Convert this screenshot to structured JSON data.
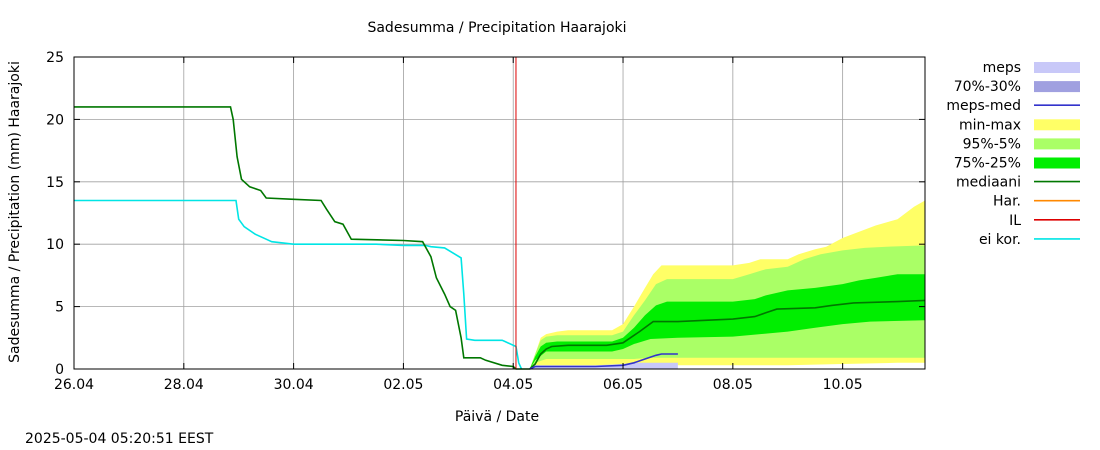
{
  "chart_data": {
    "type": "area",
    "title": "Sadesumma / Precipitation  Haarajoki",
    "xlabel": "Päivä / Date",
    "ylabel": "Sadesumma / Precipitation (mm)  Haarajoki",
    "timestamp": "2025-05-04  05:20:51  EEST",
    "x_unit": "days since 26.04",
    "xlim": [
      0,
      15.5
    ],
    "ylim": [
      0,
      25
    ],
    "yticks": [
      0,
      5,
      10,
      15,
      20,
      25
    ],
    "xticks": [
      {
        "x": 0,
        "label": "26.04"
      },
      {
        "x": 2,
        "label": "28.04"
      },
      {
        "x": 4,
        "label": "30.04"
      },
      {
        "x": 6,
        "label": "02.05"
      },
      {
        "x": 8,
        "label": "04.05"
      },
      {
        "x": 10,
        "label": "06.05"
      },
      {
        "x": 12,
        "label": "08.05"
      },
      {
        "x": 14,
        "label": "10.05"
      }
    ],
    "grid": true,
    "legend_position": "right",
    "colors": {
      "meps": "#c8c8f8",
      "meps_70_30": "#a0a0e0",
      "meps_med": "#3333cc",
      "min_max": "#ffff66",
      "p95_5": "#aaff66",
      "p75_25": "#00ee00",
      "mediaani": "#007700",
      "har": "#ff8800",
      "il": "#dd0000",
      "ei_kor": "#00e5e5"
    },
    "legend": [
      {
        "label": "meps",
        "key": "meps",
        "kind": "box"
      },
      {
        "label": "70%-30%",
        "key": "meps_70_30",
        "kind": "box"
      },
      {
        "label": "meps-med",
        "key": "meps_med",
        "kind": "line"
      },
      {
        "label": "min-max",
        "key": "min_max",
        "kind": "box"
      },
      {
        "label": "95%-5%",
        "key": "p95_5",
        "kind": "box"
      },
      {
        "label": "75%-25%",
        "key": "p75_25",
        "kind": "box"
      },
      {
        "label": "mediaani",
        "key": "mediaani",
        "kind": "line"
      },
      {
        "label": "Har.",
        "key": "har",
        "kind": "line"
      },
      {
        "label": "IL",
        "key": "il",
        "kind": "line"
      },
      {
        "label": "ei kor.",
        "key": "ei_kor",
        "kind": "line"
      }
    ],
    "current_time_x": 8.05,
    "series": [
      {
        "name": "mediaani",
        "kind": "line",
        "points": [
          [
            0,
            21
          ],
          [
            2.85,
            21
          ],
          [
            2.9,
            20
          ],
          [
            2.97,
            17
          ],
          [
            3.05,
            15.2
          ],
          [
            3.2,
            14.6
          ],
          [
            3.4,
            14.3
          ],
          [
            3.5,
            13.7
          ],
          [
            4.0,
            13.6
          ],
          [
            4.5,
            13.5
          ],
          [
            4.6,
            12.8
          ],
          [
            4.75,
            11.8
          ],
          [
            4.9,
            11.6
          ],
          [
            5.05,
            10.4
          ],
          [
            6.0,
            10.3
          ],
          [
            6.35,
            10.2
          ],
          [
            6.5,
            9.0
          ],
          [
            6.6,
            7.3
          ],
          [
            6.75,
            6.0
          ],
          [
            6.85,
            5.0
          ],
          [
            6.95,
            4.7
          ],
          [
            7.05,
            2.5
          ],
          [
            7.1,
            0.9
          ],
          [
            7.4,
            0.9
          ],
          [
            7.5,
            0.7
          ],
          [
            7.8,
            0.3
          ],
          [
            8.0,
            0.2
          ],
          [
            8.05,
            0.0
          ],
          [
            8.3,
            0.0
          ],
          [
            8.4,
            0.4
          ],
          [
            8.5,
            1.2
          ],
          [
            8.6,
            1.6
          ],
          [
            8.7,
            1.8
          ],
          [
            9.0,
            1.9
          ],
          [
            9.7,
            1.9
          ],
          [
            10.0,
            2.1
          ],
          [
            10.3,
            3.0
          ],
          [
            10.55,
            3.8
          ],
          [
            11.0,
            3.8
          ],
          [
            11.5,
            3.9
          ],
          [
            12.0,
            4.0
          ],
          [
            12.4,
            4.2
          ],
          [
            12.6,
            4.5
          ],
          [
            12.8,
            4.8
          ],
          [
            13.5,
            4.9
          ],
          [
            13.8,
            5.1
          ],
          [
            14.2,
            5.3
          ],
          [
            15.0,
            5.4
          ],
          [
            15.5,
            5.5
          ]
        ]
      },
      {
        "name": "ei kor.",
        "kind": "line",
        "points": [
          [
            0,
            13.5
          ],
          [
            2.95,
            13.5
          ],
          [
            3.0,
            12.0
          ],
          [
            3.1,
            11.4
          ],
          [
            3.3,
            10.8
          ],
          [
            3.5,
            10.4
          ],
          [
            3.6,
            10.2
          ],
          [
            4.0,
            10.0
          ],
          [
            5.0,
            10.0
          ],
          [
            5.5,
            10.0
          ],
          [
            6.0,
            9.9
          ],
          [
            6.4,
            9.9
          ],
          [
            6.5,
            9.8
          ],
          [
            6.75,
            9.7
          ],
          [
            7.05,
            8.9
          ],
          [
            7.1,
            6.0
          ],
          [
            7.15,
            2.4
          ],
          [
            7.3,
            2.3
          ],
          [
            7.8,
            2.3
          ],
          [
            7.85,
            2.2
          ],
          [
            8.05,
            1.8
          ],
          [
            8.1,
            0.5
          ],
          [
            8.15,
            0.0
          ]
        ]
      },
      {
        "name": "meps-med",
        "kind": "line",
        "points": [
          [
            8.3,
            0.0
          ],
          [
            8.4,
            0.2
          ],
          [
            9.5,
            0.2
          ],
          [
            10.0,
            0.3
          ],
          [
            10.2,
            0.5
          ],
          [
            10.4,
            0.8
          ],
          [
            10.6,
            1.1
          ],
          [
            10.7,
            1.2
          ],
          [
            11.0,
            1.2
          ]
        ]
      },
      {
        "name": "meps",
        "kind": "band",
        "upper": [
          [
            8.3,
            0.0
          ],
          [
            8.4,
            0.3
          ],
          [
            9.5,
            0.3
          ],
          [
            10.0,
            0.4
          ],
          [
            10.2,
            0.5
          ],
          [
            10.5,
            0.5
          ],
          [
            11.0,
            0.5
          ]
        ],
        "lower": [
          [
            8.3,
            0.0
          ],
          [
            11.0,
            0.0
          ]
        ]
      },
      {
        "name": "min-max",
        "kind": "band",
        "upper": [
          [
            8.3,
            0.0
          ],
          [
            8.4,
            1.2
          ],
          [
            8.5,
            2.5
          ],
          [
            8.6,
            2.8
          ],
          [
            8.8,
            3.0
          ],
          [
            9.0,
            3.1
          ],
          [
            9.8,
            3.1
          ],
          [
            10.0,
            3.6
          ],
          [
            10.2,
            5.0
          ],
          [
            10.4,
            6.5
          ],
          [
            10.55,
            7.6
          ],
          [
            10.7,
            8.3
          ],
          [
            11.5,
            8.3
          ],
          [
            12.0,
            8.3
          ],
          [
            12.3,
            8.5
          ],
          [
            12.5,
            8.8
          ],
          [
            13.0,
            8.8
          ],
          [
            13.2,
            9.2
          ],
          [
            13.5,
            9.6
          ],
          [
            13.7,
            9.8
          ],
          [
            14.0,
            10.5
          ],
          [
            14.3,
            11.0
          ],
          [
            14.6,
            11.5
          ],
          [
            15.0,
            12.0
          ],
          [
            15.3,
            13.0
          ],
          [
            15.5,
            13.5
          ]
        ],
        "lower": [
          [
            8.3,
            0.0
          ],
          [
            8.5,
            0.1
          ],
          [
            9.5,
            0.1
          ],
          [
            10.0,
            0.2
          ],
          [
            10.5,
            0.3
          ],
          [
            11.0,
            0.3
          ],
          [
            13.0,
            0.3
          ],
          [
            14.0,
            0.4
          ],
          [
            15.0,
            0.5
          ],
          [
            15.5,
            0.5
          ]
        ]
      },
      {
        "name": "95%-5%",
        "kind": "band",
        "upper": [
          [
            8.3,
            0.0
          ],
          [
            8.4,
            1.2
          ],
          [
            8.5,
            2.3
          ],
          [
            8.6,
            2.6
          ],
          [
            8.8,
            2.7
          ],
          [
            9.8,
            2.7
          ],
          [
            10.0,
            3.0
          ],
          [
            10.2,
            4.3
          ],
          [
            10.4,
            5.5
          ],
          [
            10.6,
            6.8
          ],
          [
            10.8,
            7.2
          ],
          [
            12.0,
            7.2
          ],
          [
            12.3,
            7.6
          ],
          [
            12.6,
            8.0
          ],
          [
            13.0,
            8.2
          ],
          [
            13.3,
            8.8
          ],
          [
            13.6,
            9.2
          ],
          [
            14.0,
            9.5
          ],
          [
            14.4,
            9.7
          ],
          [
            14.8,
            9.8
          ],
          [
            15.5,
            9.9
          ]
        ],
        "lower": [
          [
            8.3,
            0.0
          ],
          [
            8.4,
            0.5
          ],
          [
            8.6,
            0.8
          ],
          [
            9.8,
            0.8
          ],
          [
            10.2,
            0.8
          ],
          [
            10.5,
            0.9
          ],
          [
            12.0,
            0.9
          ],
          [
            14.0,
            0.9
          ],
          [
            15.5,
            0.9
          ]
        ]
      },
      {
        "name": "75%-25%",
        "kind": "band",
        "upper": [
          [
            8.3,
            0.0
          ],
          [
            8.4,
            1.0
          ],
          [
            8.5,
            1.8
          ],
          [
            8.6,
            2.1
          ],
          [
            8.8,
            2.2
          ],
          [
            9.8,
            2.2
          ],
          [
            10.0,
            2.5
          ],
          [
            10.2,
            3.3
          ],
          [
            10.4,
            4.3
          ],
          [
            10.6,
            5.1
          ],
          [
            10.8,
            5.4
          ],
          [
            12.0,
            5.4
          ],
          [
            12.4,
            5.6
          ],
          [
            12.6,
            5.9
          ],
          [
            13.0,
            6.3
          ],
          [
            13.5,
            6.5
          ],
          [
            14.0,
            6.8
          ],
          [
            14.3,
            7.1
          ],
          [
            14.6,
            7.3
          ],
          [
            15.0,
            7.6
          ],
          [
            15.5,
            7.6
          ]
        ],
        "lower": [
          [
            8.3,
            0.0
          ],
          [
            8.4,
            0.7
          ],
          [
            8.6,
            1.4
          ],
          [
            9.8,
            1.4
          ],
          [
            10.0,
            1.6
          ],
          [
            10.2,
            2.0
          ],
          [
            10.5,
            2.4
          ],
          [
            11.0,
            2.5
          ],
          [
            12.0,
            2.6
          ],
          [
            12.5,
            2.8
          ],
          [
            13.0,
            3.0
          ],
          [
            13.5,
            3.3
          ],
          [
            14.0,
            3.6
          ],
          [
            14.5,
            3.8
          ],
          [
            15.5,
            3.9
          ]
        ]
      }
    ]
  }
}
